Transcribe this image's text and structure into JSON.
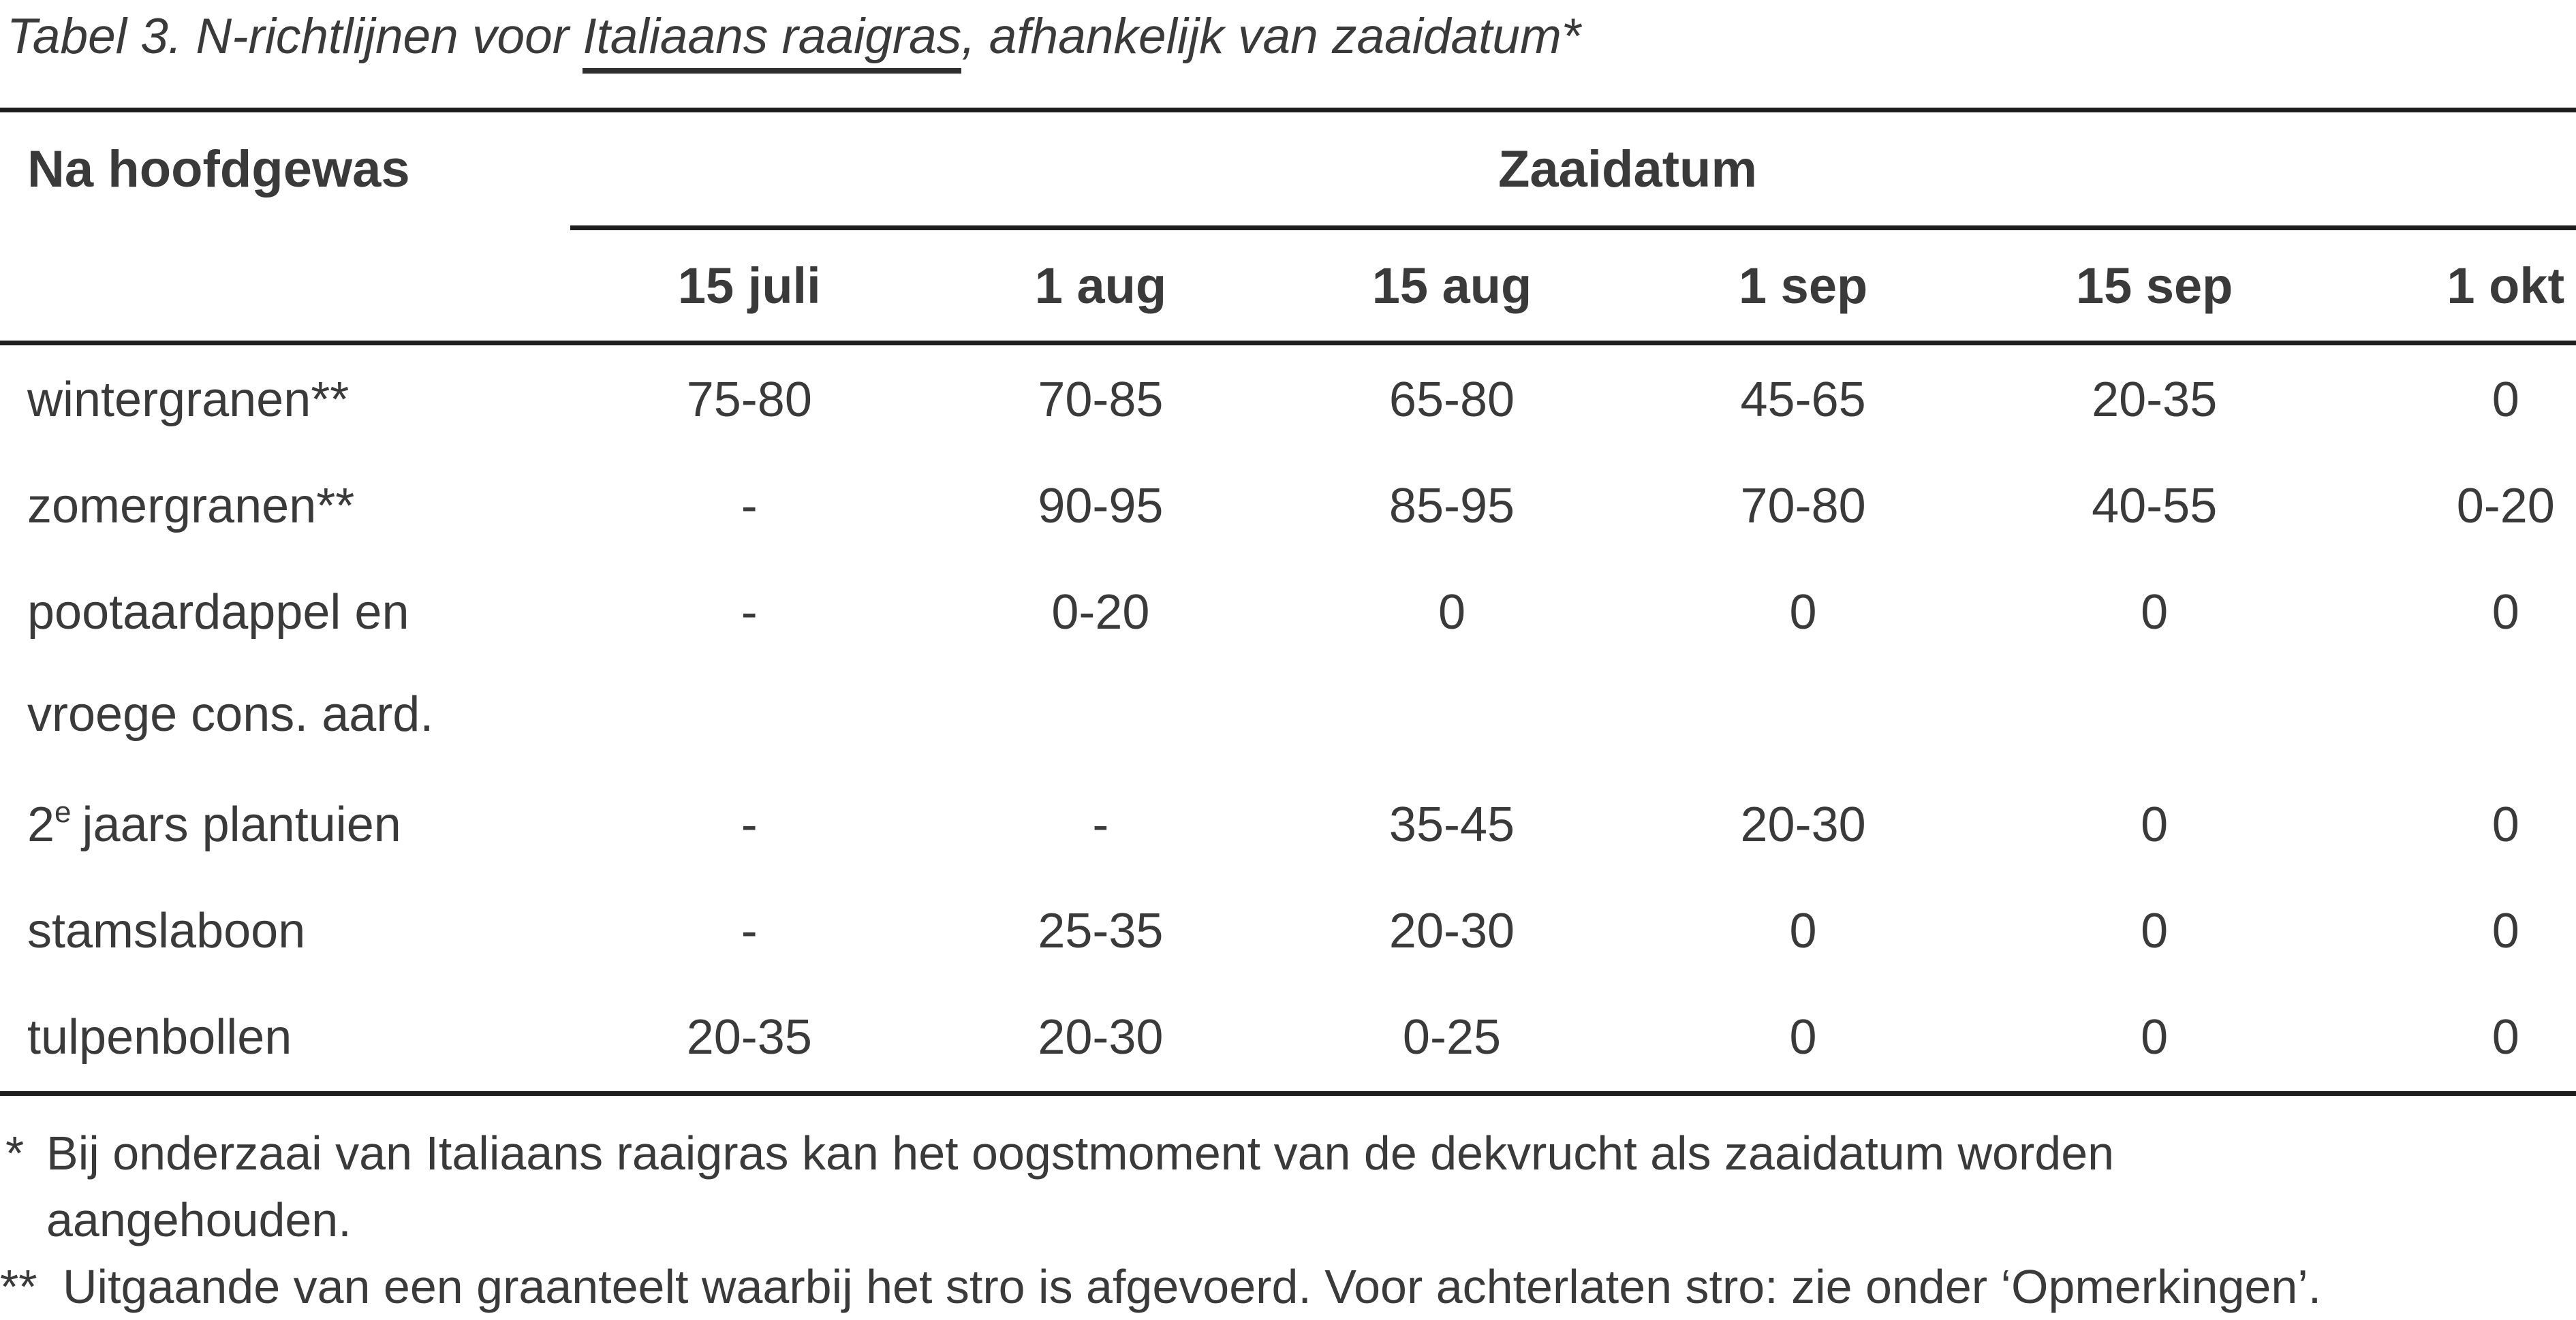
{
  "title": {
    "prefix": "Tabel 3. N-richtlijnen voor ",
    "underlined": "Italiaans raaigras",
    "suffix": ", afhankelijk van zaaidatum*"
  },
  "table": {
    "corner_header": "Na hoofdgewas",
    "group_header": "Zaaidatum",
    "columns": [
      "15 juli",
      "1 aug",
      "15 aug",
      "1 sep",
      "15 sep",
      "1 okt"
    ],
    "rows": [
      {
        "label": "wintergranen**",
        "values": [
          "75-80",
          "70-85",
          "65-80",
          "45-65",
          "20-35",
          "0"
        ]
      },
      {
        "label": "zomergranen**",
        "values": [
          "-",
          "90-95",
          "85-95",
          "70-80",
          "40-55",
          "0-20"
        ]
      },
      {
        "label_lines": [
          "pootaardappel en",
          "vroege cons. aard."
        ],
        "values": [
          "-",
          "0-20",
          "0",
          "0",
          "0",
          "0"
        ]
      },
      {
        "label_base": "2",
        "label_sup": "e",
        "label_rest": "jaars plantuien",
        "values": [
          "-",
          "-",
          "35-45",
          "20-30",
          "0",
          "0"
        ]
      },
      {
        "label": "stamslaboon",
        "values": [
          "-",
          "25-35",
          "20-30",
          "0",
          "0",
          "0"
        ]
      },
      {
        "label": "tulpenbollen",
        "values": [
          "20-35",
          "20-30",
          "0-25",
          "0",
          "0",
          "0"
        ]
      }
    ]
  },
  "footnotes": [
    {
      "marker": "*",
      "lines": [
        "Bij onderzaai van Italiaans raaigras kan het oogstmoment van de dekvrucht als zaaidatum worden",
        "aangehouden."
      ]
    },
    {
      "marker": "**",
      "lines": [
        "Uitgaande van een graanteelt waarbij het stro is afgevoerd. Voor achterlaten stro: zie onder ‘Opmerkingen’."
      ]
    }
  ],
  "colors": {
    "text": "#3a3a3a",
    "rule": "#1e1e1e",
    "background": "#ffffff"
  }
}
